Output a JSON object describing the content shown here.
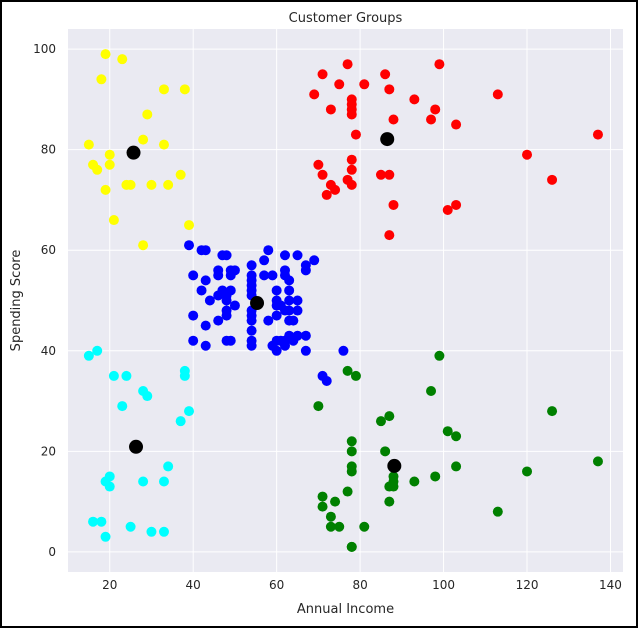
{
  "chart_data": {
    "type": "scatter",
    "title": "Customer Groups",
    "xlabel": "Annual Income",
    "ylabel": "Spending Score",
    "xlim": [
      10,
      143
    ],
    "ylim": [
      -4,
      104
    ],
    "xticks": [
      "20",
      "40",
      "60",
      "80",
      "100",
      "120",
      "140"
    ],
    "yticks": [
      "0",
      "20",
      "40",
      "60",
      "80",
      "100"
    ],
    "grid": true,
    "background": "#eaeaf2",
    "gridColor": "#ffffff",
    "series": [
      {
        "color": "#ffff00",
        "points": [
          [
            15,
            81
          ],
          [
            16,
            77
          ],
          [
            17,
            76
          ],
          [
            18,
            94
          ],
          [
            19,
            99
          ],
          [
            19,
            72
          ],
          [
            20,
            77
          ],
          [
            20,
            79
          ],
          [
            21,
            66
          ],
          [
            23,
            98
          ],
          [
            24,
            73
          ],
          [
            25,
            73
          ],
          [
            28,
            82
          ],
          [
            28,
            61
          ],
          [
            29,
            87
          ],
          [
            30,
            73
          ],
          [
            33,
            92
          ],
          [
            33,
            81
          ],
          [
            34,
            73
          ],
          [
            37,
            75
          ],
          [
            38,
            92
          ],
          [
            39,
            65
          ]
        ]
      },
      {
        "color": "#ff0000",
        "points": [
          [
            69,
            91
          ],
          [
            70,
            77
          ],
          [
            71,
            95
          ],
          [
            71,
            75
          ],
          [
            72,
            71
          ],
          [
            73,
            88
          ],
          [
            73,
            73
          ],
          [
            74,
            72
          ],
          [
            75,
            93
          ],
          [
            77,
            97
          ],
          [
            77,
            74
          ],
          [
            78,
            90
          ],
          [
            78,
            89
          ],
          [
            78,
            87
          ],
          [
            78,
            88
          ],
          [
            78,
            78
          ],
          [
            78,
            76
          ],
          [
            78,
            73
          ],
          [
            79,
            83
          ],
          [
            81,
            93
          ],
          [
            85,
            75
          ],
          [
            86,
            95
          ],
          [
            87,
            75
          ],
          [
            87,
            63
          ],
          [
            87,
            92
          ],
          [
            88,
            69
          ],
          [
            88,
            86
          ],
          [
            93,
            90
          ],
          [
            97,
            86
          ],
          [
            98,
            88
          ],
          [
            99,
            97
          ],
          [
            101,
            68
          ],
          [
            103,
            85
          ],
          [
            103,
            69
          ],
          [
            113,
            91
          ],
          [
            120,
            79
          ],
          [
            126,
            74
          ],
          [
            137,
            83
          ]
        ]
      },
      {
        "color": "#0000ff",
        "points": [
          [
            39,
            61
          ],
          [
            40,
            55
          ],
          [
            40,
            47
          ],
          [
            40,
            42
          ],
          [
            42,
            52
          ],
          [
            42,
            60
          ],
          [
            43,
            60
          ],
          [
            43,
            54
          ],
          [
            43,
            45
          ],
          [
            43,
            41
          ],
          [
            44,
            50
          ],
          [
            46,
            51
          ],
          [
            46,
            46
          ],
          [
            46,
            56
          ],
          [
            46,
            55
          ],
          [
            47,
            52
          ],
          [
            47,
            59
          ],
          [
            48,
            59
          ],
          [
            48,
            51
          ],
          [
            48,
            50
          ],
          [
            48,
            48
          ],
          [
            48,
            47
          ],
          [
            48,
            42
          ],
          [
            49,
            55
          ],
          [
            49,
            42
          ],
          [
            49,
            56
          ],
          [
            49,
            52
          ],
          [
            50,
            49
          ],
          [
            50,
            56
          ],
          [
            54,
            47
          ],
          [
            54,
            54
          ],
          [
            54,
            53
          ],
          [
            54,
            48
          ],
          [
            54,
            52
          ],
          [
            54,
            42
          ],
          [
            54,
            51
          ],
          [
            54,
            55
          ],
          [
            54,
            41
          ],
          [
            54,
            44
          ],
          [
            54,
            57
          ],
          [
            54,
            46
          ],
          [
            57,
            58
          ],
          [
            57,
            55
          ],
          [
            58,
            60
          ],
          [
            58,
            46
          ],
          [
            59,
            55
          ],
          [
            59,
            41
          ],
          [
            60,
            49
          ],
          [
            60,
            40
          ],
          [
            60,
            42
          ],
          [
            60,
            52
          ],
          [
            60,
            47
          ],
          [
            60,
            50
          ],
          [
            61,
            42
          ],
          [
            61,
            49
          ],
          [
            62,
            41
          ],
          [
            62,
            48
          ],
          [
            62,
            59
          ],
          [
            62,
            55
          ],
          [
            62,
            56
          ],
          [
            62,
            42
          ],
          [
            63,
            50
          ],
          [
            63,
            46
          ],
          [
            63,
            43
          ],
          [
            63,
            48
          ],
          [
            63,
            52
          ],
          [
            63,
            54
          ],
          [
            64,
            42
          ],
          [
            64,
            46
          ],
          [
            65,
            48
          ],
          [
            65,
            50
          ],
          [
            65,
            43
          ],
          [
            65,
            59
          ],
          [
            67,
            43
          ],
          [
            67,
            57
          ],
          [
            67,
            56
          ],
          [
            67,
            40
          ],
          [
            69,
            58
          ],
          [
            71,
            35
          ],
          [
            72,
            34
          ],
          [
            76,
            40
          ]
        ]
      },
      {
        "color": "#00ffff",
        "points": [
          [
            15,
            39
          ],
          [
            16,
            6
          ],
          [
            17,
            40
          ],
          [
            18,
            6
          ],
          [
            19,
            3
          ],
          [
            19,
            14
          ],
          [
            20,
            15
          ],
          [
            20,
            13
          ],
          [
            21,
            35
          ],
          [
            23,
            29
          ],
          [
            24,
            35
          ],
          [
            25,
            5
          ],
          [
            28,
            14
          ],
          [
            28,
            32
          ],
          [
            29,
            31
          ],
          [
            30,
            4
          ],
          [
            33,
            4
          ],
          [
            33,
            14
          ],
          [
            34,
            17
          ],
          [
            37,
            26
          ],
          [
            38,
            35
          ],
          [
            38,
            36
          ],
          [
            39,
            28
          ]
        ]
      },
      {
        "color": "#008000",
        "points": [
          [
            70,
            29
          ],
          [
            71,
            11
          ],
          [
            71,
            9
          ],
          [
            73,
            5
          ],
          [
            73,
            7
          ],
          [
            74,
            10
          ],
          [
            75,
            5
          ],
          [
            77,
            12
          ],
          [
            77,
            36
          ],
          [
            78,
            22
          ],
          [
            78,
            17
          ],
          [
            78,
            20
          ],
          [
            78,
            16
          ],
          [
            78,
            1
          ],
          [
            78,
            1
          ],
          [
            79,
            35
          ],
          [
            81,
            5
          ],
          [
            85,
            26
          ],
          [
            86,
            20
          ],
          [
            87,
            27
          ],
          [
            87,
            13
          ],
          [
            87,
            10
          ],
          [
            88,
            13
          ],
          [
            88,
            15
          ],
          [
            88,
            14
          ],
          [
            93,
            14
          ],
          [
            97,
            32
          ],
          [
            98,
            15
          ],
          [
            99,
            39
          ],
          [
            101,
            24
          ],
          [
            103,
            17
          ],
          [
            103,
            23
          ],
          [
            113,
            8
          ],
          [
            120,
            16
          ],
          [
            126,
            28
          ],
          [
            137,
            18
          ]
        ]
      }
    ],
    "centroids": {
      "color": "#000000",
      "points": [
        [
          25.7,
          79.4
        ],
        [
          86.5,
          82.1
        ],
        [
          55.3,
          49.5
        ],
        [
          26.3,
          20.9
        ],
        [
          88.2,
          17.1
        ]
      ]
    }
  }
}
